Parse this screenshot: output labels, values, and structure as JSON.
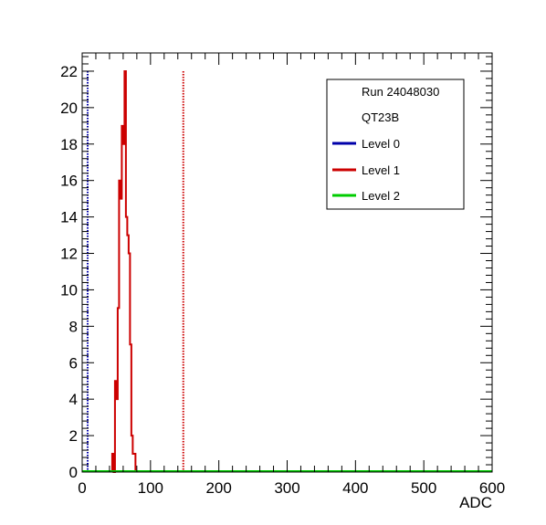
{
  "chart_data": {
    "type": "histogram",
    "xlabel": "ADC",
    "ylabel": "",
    "xlim": [
      0,
      600
    ],
    "ylim": [
      0,
      23
    ],
    "x_ticks": [
      0,
      100,
      200,
      300,
      400,
      500,
      600
    ],
    "y_ticks": [
      0,
      2,
      4,
      6,
      8,
      10,
      12,
      14,
      16,
      18,
      20,
      22
    ],
    "grid": false,
    "legend": {
      "placement": "top-right",
      "header": [
        "Run 24048030",
        "QT23B"
      ],
      "entries": [
        {
          "label": "Level 0",
          "color": "#0000aa"
        },
        {
          "label": "Level 1",
          "color": "#cc0000"
        },
        {
          "label": "Level 2",
          "color": "#00cc00"
        }
      ]
    },
    "series": [
      {
        "name": "Level 0",
        "color": "#0000aa",
        "bin_width": 2,
        "x": [],
        "values": [],
        "threshold": {
          "x": 8,
          "y_max": 22,
          "style": "dotted"
        }
      },
      {
        "name": "Level 1",
        "color": "#cc0000",
        "bin_width": 2,
        "x": [
          44,
          46,
          48,
          50,
          52,
          54,
          56,
          58,
          60,
          62,
          64,
          66,
          68,
          70,
          72,
          74,
          76
        ],
        "values": [
          1,
          0,
          5,
          4,
          9,
          16,
          15,
          19,
          18,
          22,
          14,
          13,
          12,
          7,
          2,
          1,
          1
        ],
        "threshold": {
          "x": 148,
          "y_max": 22,
          "style": "dotted"
        }
      },
      {
        "name": "Level 2",
        "color": "#00cc00",
        "bin_width": 2,
        "x": [],
        "values": []
      }
    ]
  }
}
